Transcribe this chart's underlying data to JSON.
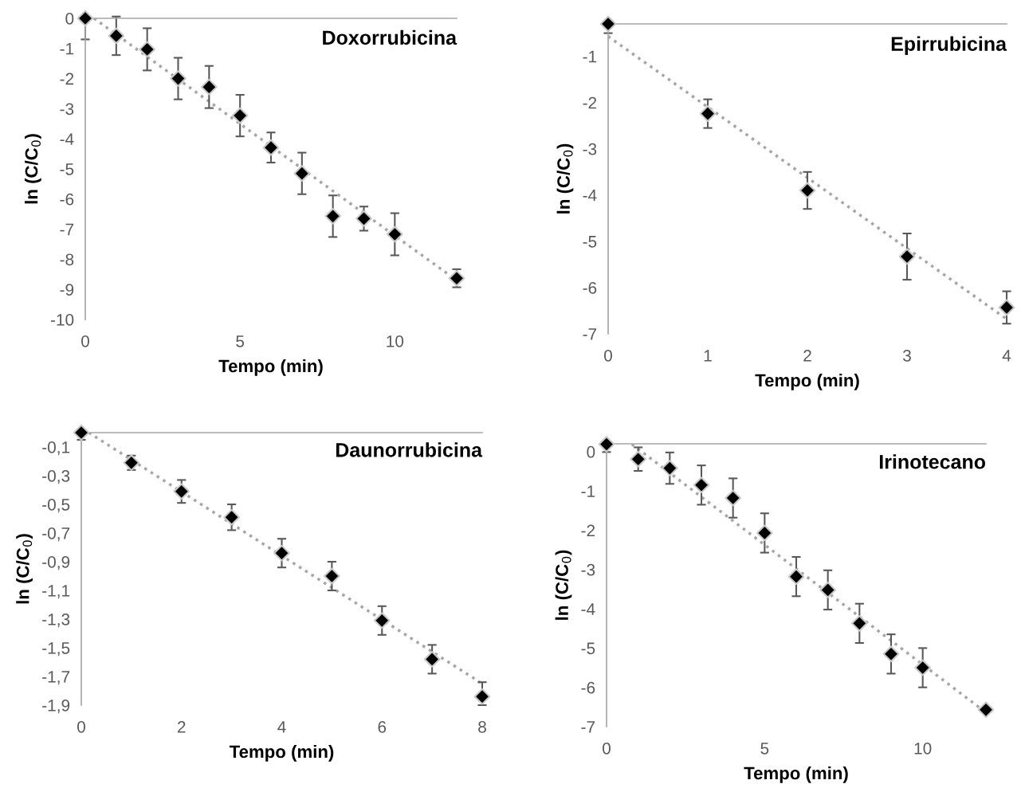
{
  "chart_data": [
    {
      "type": "scatter",
      "xlabel": "Tempo (min)",
      "ylabel": "ln (C/C$_{0}$)",
      "annotations": [
        "Doxorrubicina"
      ],
      "x": [
        0,
        1,
        2,
        3,
        4,
        5,
        6,
        7,
        8,
        9,
        10,
        12
      ],
      "xlim": [
        0,
        12
      ],
      "xticks": [
        0,
        5,
        10
      ],
      "ylim": [
        -10,
        0
      ],
      "yticks": [
        0,
        -1,
        -2,
        -3,
        -4,
        -5,
        -6,
        -7,
        -8,
        -9,
        -10
      ],
      "marker": "diamond",
      "series": [
        {
          "color": "#000000",
          "values": [
            0,
            -0.58,
            -1.03,
            -2.0,
            -2.28,
            -3.23,
            -4.29,
            -5.15,
            -6.57,
            -6.65,
            -7.17,
            -8.63
          ],
          "errors": [
            [
              -0.7,
              0
            ],
            0.64,
            0.7,
            0.69,
            0.7,
            0.69,
            0.5,
            0.69,
            0.69,
            0.4,
            0.7,
            0.3
          ]
        },
        {
          "type": "line",
          "color": "#a6a6a6",
          "line_style": "dotted",
          "marker": "none",
          "x": [
            0.28,
            12
          ],
          "values": [
            0,
            -8.7
          ]
        }
      ]
    },
    {
      "type": "scatter",
      "xlabel": "Tempo (min)",
      "ylabel": "ln (C/C$_{0}$)",
      "annotations": [
        "Epirrubicina"
      ],
      "x": [
        0,
        1,
        2,
        3,
        4
      ],
      "xlim": [
        0,
        4
      ],
      "xticks": [
        0,
        1,
        2,
        3,
        4
      ],
      "ylim": [
        -7,
        -0.3
      ],
      "yticks": [
        -1,
        -2,
        -3,
        -4,
        -5,
        -6,
        -7
      ],
      "marker": "diamond",
      "series": [
        {
          "color": "#000000",
          "values": [
            -0.3,
            -2.24,
            -3.9,
            -5.33,
            -6.43
          ],
          "errors": [
            [
              -0.5,
              -0.3
            ],
            0.31,
            0.4,
            0.5,
            0.35
          ]
        },
        {
          "type": "line",
          "color": "#a6a6a6",
          "line_style": "dotted",
          "marker": "none",
          "x": [
            0,
            4
          ],
          "values": [
            -0.57,
            -6.68
          ]
        }
      ]
    },
    {
      "type": "scatter",
      "xlabel": "Tempo (min)",
      "ylabel": "ln (C/C$_{0}$)",
      "annotations": [
        "Daunorrubicina"
      ],
      "x": [
        0,
        1,
        2,
        3,
        4,
        5,
        6,
        7,
        8
      ],
      "xlim": [
        0,
        8
      ],
      "xticks": [
        0,
        2,
        4,
        6,
        8
      ],
      "ylim": [
        -1.9,
        0
      ],
      "yticks": [
        {
          "value": -0.1,
          "label": "-0,1"
        },
        {
          "value": -0.3,
          "label": "-0,3"
        },
        {
          "value": -0.5,
          "label": "-0,5"
        },
        {
          "value": -0.7,
          "label": "-0,7"
        },
        {
          "value": -0.9,
          "label": "-0,9"
        },
        {
          "value": -1.1,
          "label": "-1,1"
        },
        {
          "value": -1.3,
          "label": "-1,3"
        },
        {
          "value": -1.5,
          "label": "-1,5"
        },
        {
          "value": -1.7,
          "label": "-1,7"
        },
        {
          "value": -1.9,
          "label": "-1,9"
        }
      ],
      "marker": "diamond",
      "series": [
        {
          "color": "#000000",
          "values": [
            0,
            -0.21,
            -0.41,
            -0.59,
            -0.84,
            -1.0,
            -1.31,
            -1.58,
            -1.84
          ],
          "errors": [
            [
              -0.05,
              0
            ],
            0.05,
            0.08,
            0.09,
            0.1,
            0.1,
            0.1,
            0.1,
            [
              -1.9,
              -1.74
            ]
          ]
        },
        {
          "type": "line",
          "color": "#a6a6a6",
          "line_style": "dotted",
          "marker": "none",
          "x": [
            0.15,
            8
          ],
          "values": [
            0,
            -1.75
          ]
        }
      ]
    },
    {
      "type": "scatter",
      "xlabel": "Tempo (min)",
      "ylabel": "ln (C/C$_{0}$)",
      "annotations": [
        "Irinotecano"
      ],
      "x": [
        0,
        1,
        2,
        3,
        4,
        5,
        6,
        7,
        8,
        9,
        10,
        12
      ],
      "xlim": [
        0,
        12
      ],
      "xticks": [
        0,
        5,
        10
      ],
      "ylim": [
        -7,
        0.2
      ],
      "yticks": [
        0,
        -1,
        -2,
        -3,
        -4,
        -5,
        -6,
        -7
      ],
      "marker": "diamond",
      "series": [
        {
          "color": "#000000",
          "values": [
            0.19,
            -0.19,
            -0.42,
            -0.85,
            -1.18,
            -2.07,
            -3.18,
            -3.52,
            -4.37,
            -5.15,
            -5.5,
            -6.57
          ],
          "errors": [
            [
              -0.01,
              0.2
            ],
            0.3,
            0.4,
            0.5,
            0.5,
            0.5,
            0.5,
            0.5,
            0.5,
            0.5,
            0.5,
            null
          ]
        },
        {
          "type": "line",
          "color": "#a6a6a6",
          "line_style": "dotted",
          "marker": "none",
          "x": [
            0.8,
            12
          ],
          "values": [
            0.19,
            -6.64
          ]
        }
      ]
    }
  ]
}
